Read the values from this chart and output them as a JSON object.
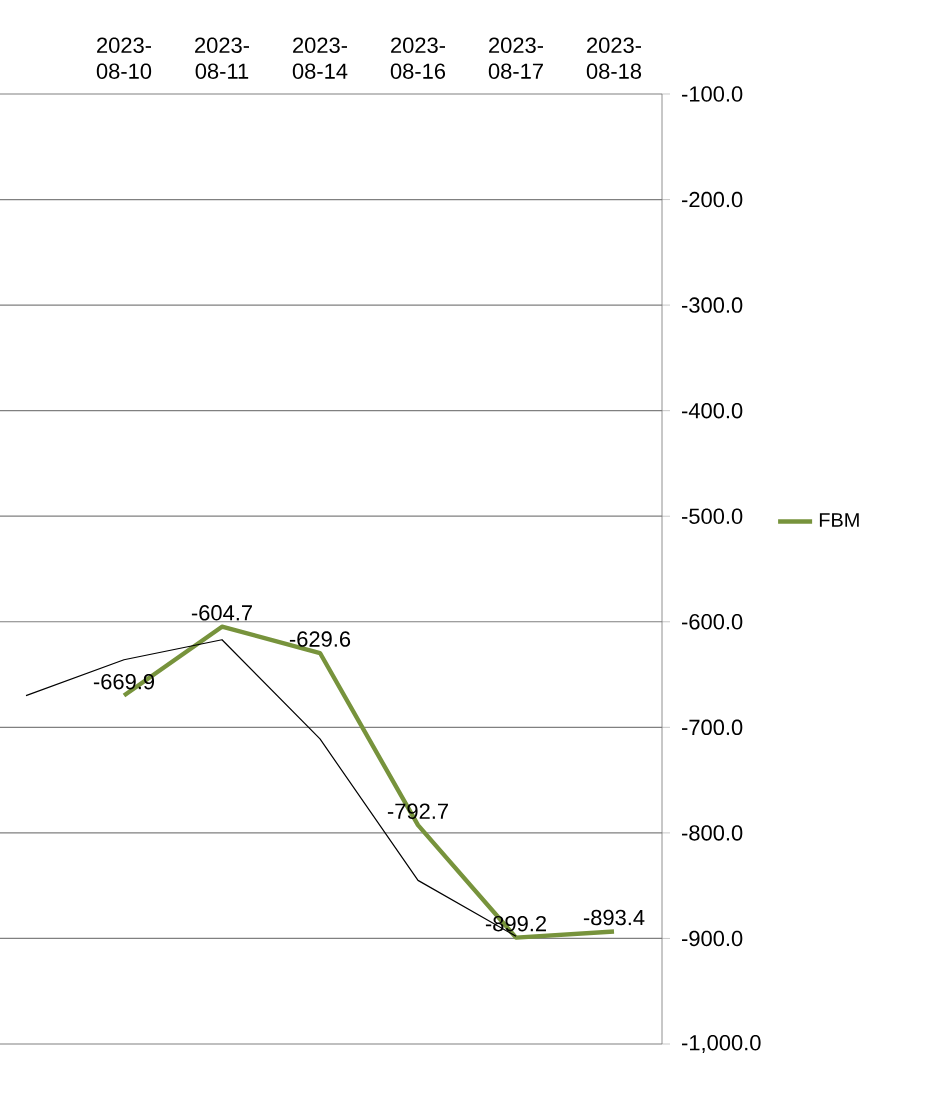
{
  "chart_data": {
    "type": "line",
    "categories": [
      null,
      "2023-08-10",
      "2023-08-11",
      "2023-08-14",
      "2023-08-16",
      "2023-08-17",
      "2023-08-18"
    ],
    "series": [
      {
        "name": "FBM",
        "color": "#77933c",
        "values": [
          null,
          -669.9,
          -604.7,
          -629.6,
          -792.7,
          -899.2,
          -893.4
        ],
        "value_labels": [
          null,
          "-669.9",
          "-604.7",
          "-629.6",
          "-792.7",
          "-899.2",
          "-893.4"
        ]
      },
      {
        "color": "#000000",
        "values": [
          -670,
          -636,
          -617,
          -711,
          -845,
          -898,
          null
        ]
      }
    ],
    "ylim": [
      -1000,
      -100
    ],
    "yticks": [
      {
        "value": -100,
        "label": "-100.0"
      },
      {
        "value": -200,
        "label": "-200.0"
      },
      {
        "value": -300,
        "label": "-300.0"
      },
      {
        "value": -400,
        "label": "-400.0"
      },
      {
        "value": -500,
        "label": "-500.0"
      },
      {
        "value": -600,
        "label": "-600.0"
      },
      {
        "value": -700,
        "label": "-700.0"
      },
      {
        "value": -800,
        "label": "-800.0"
      },
      {
        "value": -900,
        "label": "-900.0"
      },
      {
        "value": -1000,
        "label": "-1,000.0"
      }
    ],
    "grid": "y",
    "legend": "right"
  }
}
